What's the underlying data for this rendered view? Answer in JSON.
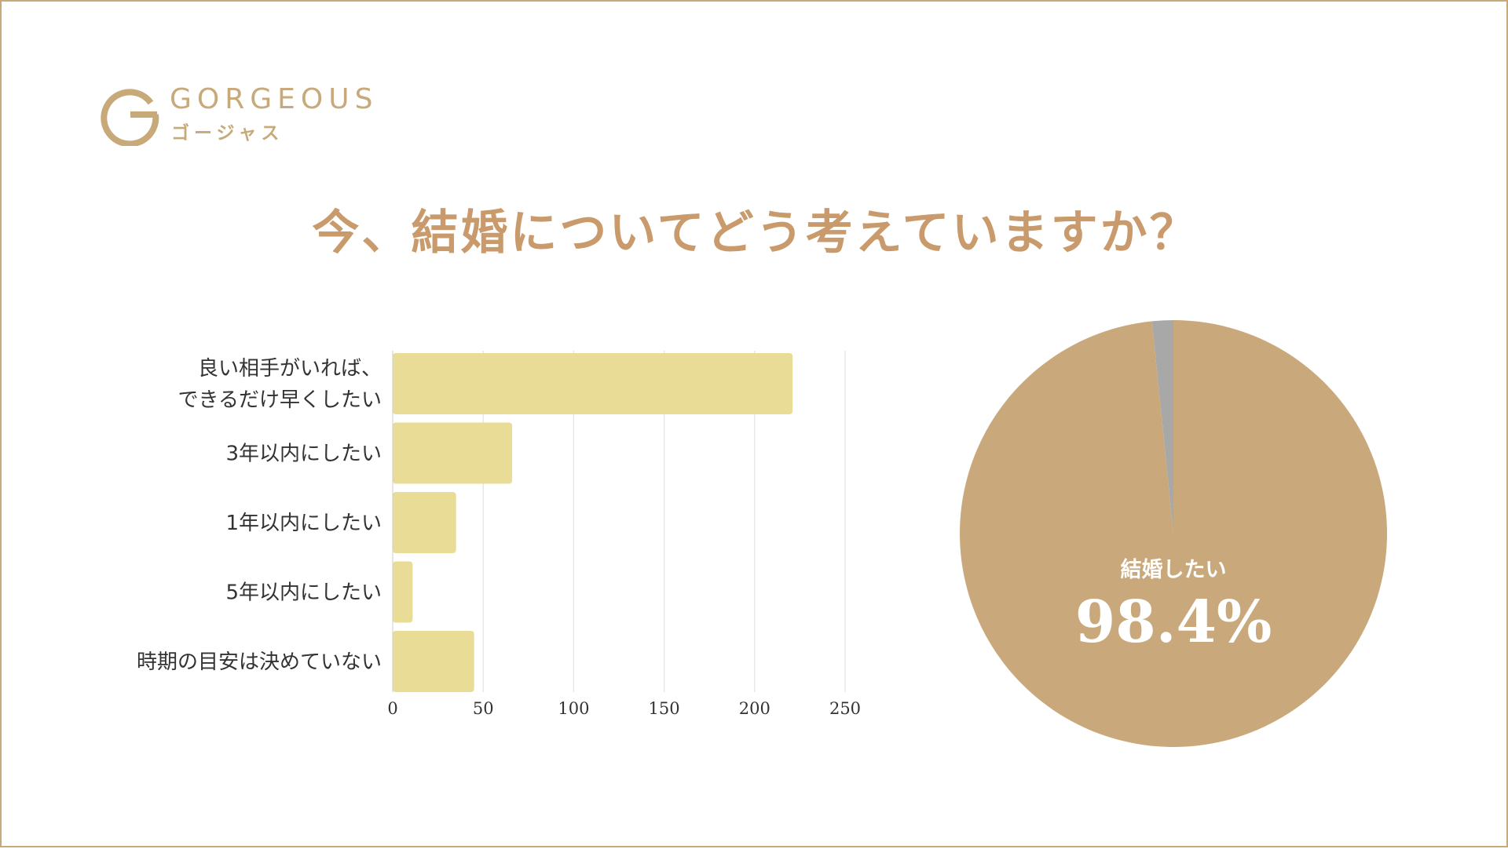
{
  "brand": {
    "wordmark": "GORGEOUS",
    "kana": "ゴージャス",
    "color": "#c8a97a"
  },
  "title": "今、結婚についてどう考えていますか？",
  "colors": {
    "border": "#c8a97a",
    "title": "#c99a6b",
    "bar": "#e8dc97",
    "pie_main": "#c9a97c",
    "pie_other": "#a8a8a8",
    "grid": "#e4e4e4",
    "label_text": "#333333"
  },
  "chart_data": [
    {
      "type": "bar",
      "orientation": "horizontal",
      "categories": [
        [
          "良い相手がいれば、",
          "できるだけ早くしたい"
        ],
        [
          "3年以内にしたい"
        ],
        [
          "1年以内にしたい"
        ],
        [
          "5年以内にしたい"
        ],
        [
          "時期の目安は決めていない"
        ]
      ],
      "values": [
        221,
        66,
        35,
        11,
        45
      ],
      "xlim": [
        0,
        250
      ],
      "xticks": [
        "0",
        "50",
        "100",
        "150",
        "200",
        "250"
      ],
      "grid": true
    },
    {
      "type": "pie",
      "slices": [
        {
          "label": "結婚したい",
          "value": 98.4,
          "display": "98.4%"
        },
        {
          "label": "",
          "value": 1.6
        }
      ]
    }
  ]
}
